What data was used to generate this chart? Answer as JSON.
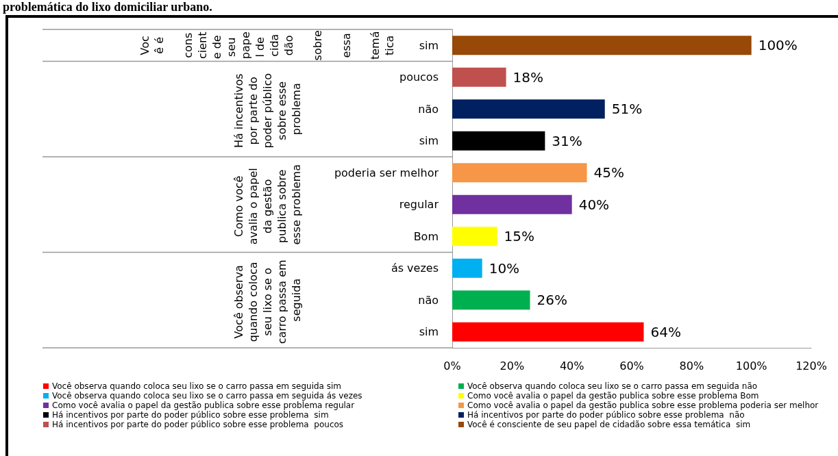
{
  "chart_data": {
    "type": "bar",
    "orientation": "horizontal",
    "stacked": true,
    "title": "problemática do lixo domiciliar urbano.",
    "categories": [
      "sim",
      "poucos",
      "não",
      "sim",
      "poderia ser melhor",
      "regular",
      "Bom",
      "ás vezes",
      "não",
      "sim"
    ],
    "annotations": [
      "Você é consciente de seu papel de cidadão sobre essa temática",
      "Há incentivos por parte do poder público sobre esse problema",
      "Como você avalia o papel da gestão publica sobre esse problema",
      "Você observa quando coloca seu lixo se o carro passa em seguida"
    ],
    "series": [
      {
        "name": "Você observa quando coloca seu lixo se o carro passa em seguida sim",
        "color": "#ff0000",
        "values": [
          null,
          null,
          null,
          null,
          null,
          null,
          null,
          null,
          null,
          64
        ],
        "value_labels": [
          null,
          null,
          null,
          null,
          null,
          null,
          null,
          null,
          null,
          "64%"
        ]
      },
      {
        "name": "Você observa quando coloca seu lixo se o carro passa em seguida não",
        "color": "#00b050",
        "values": [
          null,
          null,
          null,
          null,
          null,
          null,
          null,
          null,
          26,
          null
        ],
        "value_labels": [
          null,
          null,
          null,
          null,
          null,
          null,
          null,
          null,
          "26%",
          null
        ]
      },
      {
        "name": "Você observa quando coloca seu lixo se o carro passa em seguida ás vezes",
        "color": "#00b0f0",
        "values": [
          null,
          null,
          null,
          null,
          null,
          null,
          null,
          10,
          null,
          null
        ],
        "value_labels": [
          null,
          null,
          null,
          null,
          null,
          null,
          null,
          "10%",
          null,
          null
        ]
      },
      {
        "name": "Como você avalia o papel da gestão publica sobre esse problema Bom",
        "color": "#ffff00",
        "values": [
          null,
          null,
          null,
          null,
          null,
          null,
          15,
          null,
          null,
          null
        ],
        "value_labels": [
          null,
          null,
          null,
          null,
          null,
          null,
          "15%",
          null,
          null,
          null
        ]
      },
      {
        "name": "Como você avalia o papel da gestão publica sobre esse problema regular",
        "color": "#7030a0",
        "values": [
          null,
          null,
          null,
          null,
          null,
          40,
          null,
          null,
          null,
          null
        ],
        "value_labels": [
          null,
          null,
          null,
          null,
          null,
          "40%",
          null,
          null,
          null,
          null
        ]
      },
      {
        "name": "Como você avalia o papel da gestão publica sobre esse problema poderia ser melhor",
        "color": "#f79646",
        "values": [
          null,
          null,
          null,
          null,
          45,
          null,
          null,
          null,
          null,
          null
        ],
        "value_labels": [
          null,
          null,
          null,
          null,
          "45%",
          null,
          null,
          null,
          null,
          null
        ]
      },
      {
        "name": "Há incentivos por parte do poder público sobre esse problema  sim",
        "color": "#000000",
        "values": [
          null,
          null,
          null,
          31,
          null,
          null,
          null,
          null,
          null,
          null
        ],
        "value_labels": [
          null,
          null,
          null,
          "31%",
          null,
          null,
          null,
          null,
          null,
          null
        ]
      },
      {
        "name": "Há incentivos por parte do poder público sobre esse problema  não",
        "color": "#002060",
        "values": [
          null,
          null,
          51,
          null,
          null,
          null,
          null,
          null,
          null,
          null
        ],
        "value_labels": [
          null,
          null,
          "51%",
          null,
          null,
          null,
          null,
          null,
          null,
          null
        ]
      },
      {
        "name": "Há incentivos por parte do poder público sobre esse problema  poucos",
        "color": "#c0504d",
        "values": [
          null,
          18,
          null,
          null,
          null,
          null,
          null,
          null,
          null,
          null
        ],
        "value_labels": [
          null,
          "18%",
          null,
          null,
          null,
          null,
          null,
          null,
          null,
          null
        ]
      },
      {
        "name": "Você é consciente de seu papel de cidadão sobre essa temática  sim",
        "color": "#984807",
        "values": [
          100,
          null,
          null,
          null,
          null,
          null,
          null,
          null,
          null,
          null
        ],
        "value_labels": [
          "100%",
          null,
          null,
          null,
          null,
          null,
          null,
          null,
          null,
          null
        ]
      }
    ],
    "xlim": [
      0,
      120
    ],
    "xticks": [
      {
        "value": 0,
        "label": "0%"
      },
      {
        "value": 20,
        "label": "20%"
      },
      {
        "value": 40,
        "label": "40%"
      },
      {
        "value": 60,
        "label": "60%"
      },
      {
        "value": 80,
        "label": "80%"
      },
      {
        "value": 100,
        "label": "100%"
      },
      {
        "value": 120,
        "label": "120%"
      }
    ],
    "grid": false,
    "legend": "bottom"
  }
}
